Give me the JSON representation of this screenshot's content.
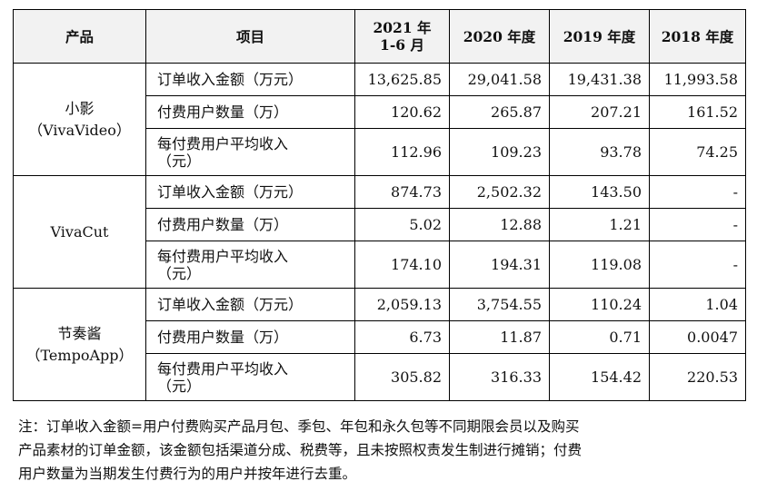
{
  "header": {
    "product": "产品",
    "item": "项目",
    "col_2021": [
      "2021 年",
      "1-6 月"
    ],
    "col_2020": "2020 年度",
    "col_2019": "2019 年度",
    "col_2018": "2018 年度"
  },
  "groups": [
    {
      "product": [
        "小影",
        "（VivaVideo）"
      ],
      "rows": [
        {
          "item": [
            "订单收入金额（万元）"
          ],
          "v2021": "13,625.85",
          "v2020": "29,041.58",
          "v2019": "19,431.38",
          "v2018": "11,993.58"
        },
        {
          "item": [
            "付费用户数量（万）"
          ],
          "v2021": "120.62",
          "v2020": "265.87",
          "v2019": "207.21",
          "v2018": "161.52"
        },
        {
          "item": [
            "每付费用户平均收入",
            "（元）"
          ],
          "v2021": "112.96",
          "v2020": "109.23",
          "v2019": "93.78",
          "v2018": "74.25"
        }
      ]
    },
    {
      "product": [
        "VivaCut"
      ],
      "rows": [
        {
          "item": [
            "订单收入金额（万元）"
          ],
          "v2021": "874.73",
          "v2020": "2,502.32",
          "v2019": "143.50",
          "v2018": "-"
        },
        {
          "item": [
            "付费用户数量（万）"
          ],
          "v2021": "5.02",
          "v2020": "12.88",
          "v2019": "1.21",
          "v2018": "-"
        },
        {
          "item": [
            "每付费用户平均收入",
            "（元）"
          ],
          "v2021": "174.10",
          "v2020": "194.31",
          "v2019": "119.08",
          "v2018": "-"
        }
      ]
    },
    {
      "product": [
        "节奏酱",
        "（TempoApp）"
      ],
      "rows": [
        {
          "item": [
            "订单收入金额（万元）"
          ],
          "v2021": "2,059.13",
          "v2020": "3,754.55",
          "v2019": "110.24",
          "v2018": "1.04"
        },
        {
          "item": [
            "付费用户数量（万）"
          ],
          "v2021": "6.73",
          "v2020": "11.87",
          "v2019": "0.71",
          "v2018": "0.0047"
        },
        {
          "item": [
            "每付费用户平均收入",
            "（元）"
          ],
          "v2021": "305.82",
          "v2020": "316.33",
          "v2019": "154.42",
          "v2018": "220.53"
        }
      ]
    }
  ],
  "note": [
    "注：订单收入金额=用户付费购买产品月包、季包、年包和永久包等不同期限会员以及购买",
    "产品素材的订单金额，该金额包括渠道分成、税费等，且未按照权责发生制进行摊销；付费",
    "用户数量为当期发生付费行为的用户并按年进行去重。"
  ]
}
